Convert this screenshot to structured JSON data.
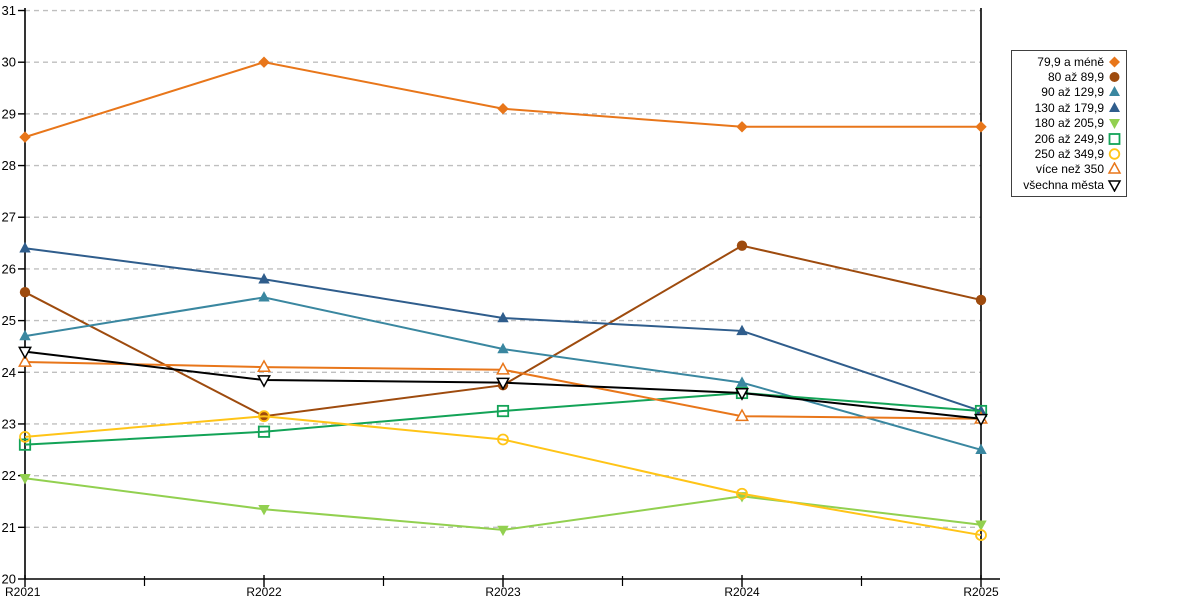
{
  "chart_data": {
    "type": "line",
    "title": "",
    "xlabel": "",
    "ylabel": "",
    "categories": [
      "R2021",
      "R2022",
      "R2023",
      "R2024",
      "R2025"
    ],
    "ylim": [
      20,
      31
    ],
    "y_ticks": [
      20,
      21,
      22,
      23,
      24,
      25,
      26,
      27,
      28,
      29,
      30,
      31
    ],
    "grid": "horizontal-dashed",
    "gridline_color": "#bfbfbf",
    "axis_color": "#000000",
    "legend_position": "top-right",
    "series": [
      {
        "name": "79,9 a méně",
        "color": "#e8761a",
        "marker": "diamond-filled",
        "values": [
          28.55,
          30.0,
          29.1,
          28.75,
          28.75
        ]
      },
      {
        "name": "80 až 89,9",
        "color": "#9e4b0e",
        "marker": "circle-filled",
        "values": [
          25.55,
          23.15,
          23.75,
          26.45,
          25.4
        ]
      },
      {
        "name": "90 až 129,9",
        "color": "#3a87a0",
        "marker": "triangle-up-filled",
        "values": [
          24.7,
          25.45,
          24.45,
          23.8,
          22.5
        ]
      },
      {
        "name": "130 až 179,9",
        "color": "#2f5d8c",
        "marker": "triangle-up-filled",
        "values": [
          26.4,
          25.8,
          25.05,
          24.8,
          23.25
        ]
      },
      {
        "name": "180 až 205,9",
        "color": "#92d050",
        "marker": "triangle-down-filled",
        "values": [
          21.95,
          21.35,
          20.95,
          21.6,
          21.05
        ]
      },
      {
        "name": "206 až 249,9",
        "color": "#13a357",
        "marker": "square-open",
        "values": [
          22.6,
          22.85,
          23.25,
          23.6,
          23.25
        ]
      },
      {
        "name": "250 až 349,9",
        "color": "#ffc417",
        "marker": "circle-open",
        "values": [
          22.75,
          23.15,
          22.7,
          21.65,
          20.85
        ]
      },
      {
        "name": "více než 350",
        "color": "#e8761a",
        "marker": "triangle-up-open",
        "values": [
          24.2,
          24.1,
          24.05,
          23.15,
          23.1
        ]
      },
      {
        "name": "všechna města",
        "color": "#000000",
        "marker": "triangle-down-open",
        "values": [
          24.4,
          23.85,
          23.8,
          23.6,
          23.1
        ]
      }
    ]
  }
}
